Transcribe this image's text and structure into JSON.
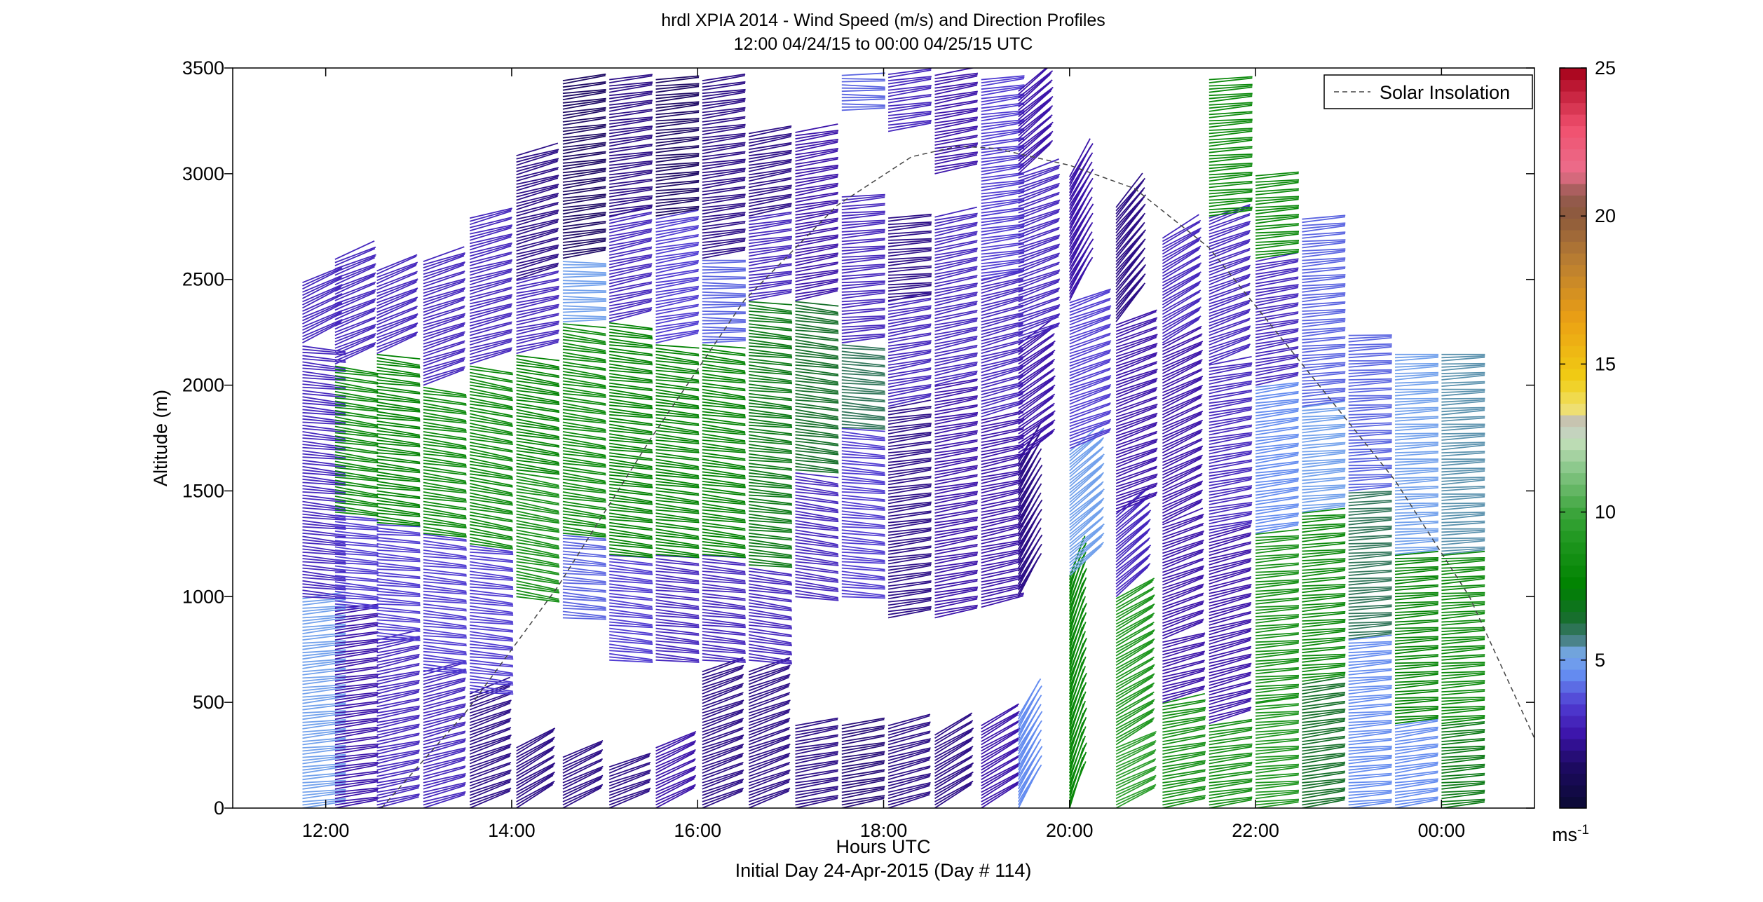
{
  "chart_data": {
    "type": "scatter",
    "title": "hrdl XPIA 2014 - Wind Speed (m/s) and Direction Profiles",
    "subtitle": "12:00 04/24/15 to 00:00 04/25/15  UTC",
    "xlabel": "Hours UTC",
    "xlabel2": "Initial Day 24-Apr-2015 (Day # 114)",
    "ylabel": "Altitude (m)",
    "xlim": [
      11,
      25
    ],
    "ylim": [
      0,
      3500
    ],
    "x_tick_values": [
      12,
      14,
      16,
      18,
      20,
      22,
      24
    ],
    "x_tick_labels": [
      "12:00",
      "14:00",
      "16:00",
      "18:00",
      "20:00",
      "22:00",
      "00:00"
    ],
    "y_ticks": [
      "0",
      "500",
      "1000",
      "1500",
      "2000",
      "2500",
      "3000",
      "3500"
    ],
    "legend": {
      "entries": [
        "Solar Insolation"
      ],
      "placement": "top-right"
    },
    "grid": false,
    "colorbar": {
      "label": "ms",
      "label_exponent": "-1",
      "range": [
        0,
        25
      ],
      "ticks": [
        "5",
        "10",
        "15",
        "20",
        "25"
      ]
    },
    "solar_insolation": {
      "style": "dashed",
      "x": [
        12.6,
        13.5,
        14.5,
        15.5,
        16.5,
        17.5,
        18.3,
        18.8,
        19.2,
        20.0,
        20.7,
        21.5,
        22.5,
        23.5,
        24.3,
        25.0
      ],
      "y": [
        0,
        450,
        1050,
        1750,
        2400,
        2850,
        3080,
        3130,
        3120,
        3040,
        2930,
        2650,
        2100,
        1550,
        1000,
        330
      ]
    },
    "profiles": [
      {
        "t": 11.75,
        "top": 2500,
        "b": [
          [
            0,
            1000,
            5,
            -6
          ],
          [
            1000,
            2200,
            3,
            6
          ],
          [
            2200,
            2500,
            3,
            -25
          ]
        ]
      },
      {
        "t": 12.1,
        "top": 2600,
        "b": [
          [
            0,
            950,
            2.5,
            -8
          ],
          [
            950,
            1400,
            3.5,
            5
          ],
          [
            1400,
            2100,
            8,
            8
          ],
          [
            2100,
            2600,
            3,
            -22
          ]
        ]
      },
      {
        "t": 12.55,
        "top": 2550,
        "b": [
          [
            0,
            800,
            3,
            -12
          ],
          [
            800,
            1350,
            3.5,
            5
          ],
          [
            1350,
            2150,
            7.5,
            7
          ],
          [
            2150,
            2550,
            3,
            -22
          ]
        ]
      },
      {
        "t": 13.05,
        "top": 2600,
        "b": [
          [
            0,
            650,
            3,
            -15
          ],
          [
            650,
            1300,
            3.5,
            6
          ],
          [
            1300,
            2000,
            8,
            8
          ],
          [
            2000,
            2600,
            3,
            -18
          ]
        ]
      },
      {
        "t": 13.55,
        "top": 2800,
        "b": [
          [
            0,
            550,
            2,
            -20
          ],
          [
            550,
            1250,
            3.5,
            6
          ],
          [
            1250,
            2100,
            8,
            10
          ],
          [
            2100,
            2800,
            3,
            -15
          ]
        ]
      },
      {
        "t": 14.05,
        "top": 3100,
        "b": [
          [
            0,
            300,
            2,
            -30
          ],
          [
            1000,
            1600,
            8.5,
            10
          ],
          [
            1600,
            2150,
            7.5,
            9
          ],
          [
            2150,
            2500,
            3,
            -12
          ],
          [
            2500,
            3100,
            2,
            -15
          ]
        ]
      },
      {
        "t": 14.55,
        "top": 3450,
        "b": [
          [
            0,
            250,
            2,
            -25
          ],
          [
            900,
            1300,
            4,
            5
          ],
          [
            1300,
            2300,
            8,
            8
          ],
          [
            2300,
            2600,
            5,
            0
          ],
          [
            2600,
            3450,
            1.5,
            -8
          ]
        ]
      },
      {
        "t": 15.05,
        "top": 3450,
        "b": [
          [
            0,
            200,
            2,
            -20
          ],
          [
            700,
            1200,
            3.5,
            6
          ],
          [
            1200,
            2300,
            7.5,
            7
          ],
          [
            2300,
            2800,
            3,
            -12
          ],
          [
            2800,
            3450,
            2,
            -8
          ]
        ]
      },
      {
        "t": 15.55,
        "top": 3450,
        "b": [
          [
            0,
            300,
            2.5,
            -25
          ],
          [
            700,
            1200,
            3,
            6
          ],
          [
            1200,
            2200,
            7.5,
            7
          ],
          [
            2200,
            2800,
            3.5,
            -10
          ],
          [
            2800,
            3450,
            1.5,
            -6
          ]
        ]
      },
      {
        "t": 16.05,
        "top": 3450,
        "b": [
          [
            0,
            650,
            2,
            -20
          ],
          [
            700,
            1200,
            3,
            6
          ],
          [
            1200,
            2200,
            7.5,
            7
          ],
          [
            2200,
            2600,
            4,
            0
          ],
          [
            2600,
            3450,
            2,
            -8
          ]
        ]
      },
      {
        "t": 16.55,
        "top": 3200,
        "b": [
          [
            0,
            650,
            2,
            -20
          ],
          [
            700,
            1150,
            3,
            8
          ],
          [
            1150,
            2400,
            7,
            6
          ],
          [
            2400,
            2800,
            3,
            -8
          ],
          [
            2800,
            3200,
            2,
            -10
          ]
        ]
      },
      {
        "t": 17.05,
        "top": 3200,
        "b": [
          [
            0,
            400,
            2,
            -10
          ],
          [
            1000,
            1600,
            3,
            8
          ],
          [
            1600,
            2400,
            6.5,
            7
          ],
          [
            2400,
            3200,
            2.5,
            -10
          ]
        ]
      },
      {
        "t": 17.55,
        "top": 3480,
        "b": [
          [
            0,
            400,
            1.8,
            -10
          ],
          [
            1000,
            1800,
            3.5,
            5
          ],
          [
            1800,
            2200,
            6,
            5
          ],
          [
            2200,
            2900,
            3,
            -5
          ],
          [
            3300,
            3480,
            4,
            0
          ]
        ]
      },
      {
        "t": 18.05,
        "top": 3480,
        "b": [
          [
            0,
            400,
            2,
            -15
          ],
          [
            900,
            1900,
            2,
            -8
          ],
          [
            1900,
            2400,
            3,
            -10
          ],
          [
            2400,
            2800,
            2,
            -5
          ],
          [
            3200,
            3480,
            3,
            -8
          ]
        ]
      },
      {
        "t": 18.55,
        "top": 3480,
        "b": [
          [
            0,
            350,
            2,
            -30
          ],
          [
            900,
            2000,
            2.5,
            -10
          ],
          [
            2000,
            2800,
            3,
            -12
          ],
          [
            3000,
            3480,
            2.5,
            -10
          ]
        ]
      },
      {
        "t": 19.05,
        "top": 3450,
        "b": [
          [
            0,
            400,
            2.5,
            -30
          ],
          [
            950,
            1850,
            2.5,
            -12
          ],
          [
            1850,
            2500,
            3,
            -15
          ],
          [
            2500,
            3450,
            3.5,
            -8
          ]
        ]
      },
      {
        "t": 19.45,
        "top": 3400,
        "b": [
          [
            0,
            450,
            4.5,
            -60
          ],
          [
            1000,
            1650,
            2,
            -60
          ],
          [
            1650,
            2200,
            2.5,
            -35
          ],
          [
            2200,
            3000,
            3,
            -20
          ],
          [
            3000,
            3400,
            2.5,
            -40
          ]
        ]
      },
      {
        "t": 20.0,
        "top": 3000,
        "b": [
          [
            0,
            1100,
            8,
            -70
          ],
          [
            1100,
            1700,
            5,
            -40
          ],
          [
            1700,
            2400,
            3.5,
            -20
          ],
          [
            2400,
            3000,
            2.5,
            -60
          ]
        ]
      },
      {
        "t": 20.5,
        "top": 2850,
        "b": [
          [
            0,
            300,
            9.5,
            -25
          ],
          [
            300,
            1000,
            9,
            -30
          ],
          [
            1000,
            1400,
            3,
            -40
          ],
          [
            1400,
            2300,
            2.5,
            -20
          ],
          [
            2300,
            2850,
            2,
            -50
          ]
        ]
      },
      {
        "t": 21.0,
        "top": 2700,
        "b": [
          [
            0,
            500,
            8.5,
            -10
          ],
          [
            500,
            800,
            2.5,
            -15
          ],
          [
            800,
            1350,
            2.5,
            -20
          ],
          [
            1350,
            2200,
            2.5,
            -25
          ],
          [
            2200,
            2700,
            3,
            -30
          ]
        ]
      },
      {
        "t": 21.5,
        "top": 3450,
        "b": [
          [
            0,
            400,
            8.5,
            -8
          ],
          [
            400,
            1300,
            2.5,
            -15
          ],
          [
            1300,
            2100,
            3,
            -10
          ],
          [
            2100,
            2800,
            3,
            -20
          ],
          [
            2800,
            3450,
            8,
            -5
          ]
        ]
      },
      {
        "t": 22.0,
        "top": 3000,
        "b": [
          [
            0,
            500,
            9,
            -5
          ],
          [
            500,
            1300,
            8.5,
            -5
          ],
          [
            1300,
            2000,
            4.5,
            -8
          ],
          [
            2000,
            2600,
            3,
            -10
          ],
          [
            2600,
            3000,
            8,
            -5
          ]
        ]
      },
      {
        "t": 22.5,
        "top": 2800,
        "b": [
          [
            0,
            600,
            6.5,
            -8
          ],
          [
            600,
            1400,
            8,
            -5
          ],
          [
            1400,
            1900,
            5,
            -5
          ],
          [
            1900,
            2800,
            4,
            -5
          ]
        ]
      },
      {
        "t": 23.0,
        "top": 2250,
        "b": [
          [
            0,
            800,
            4.5,
            -5
          ],
          [
            800,
            1500,
            6,
            -4
          ],
          [
            1500,
            2250,
            4,
            -3
          ]
        ]
      },
      {
        "t": 23.5,
        "top": 2150,
        "b": [
          [
            0,
            400,
            4.5,
            -8
          ],
          [
            400,
            1200,
            7.5,
            -4
          ],
          [
            1200,
            2150,
            5,
            -3
          ]
        ]
      },
      {
        "t": 24.0,
        "top": 2150,
        "b": [
          [
            0,
            400,
            7,
            -5
          ],
          [
            400,
            1200,
            8,
            -4
          ],
          [
            1200,
            2150,
            5.5,
            -3
          ]
        ]
      }
    ]
  }
}
